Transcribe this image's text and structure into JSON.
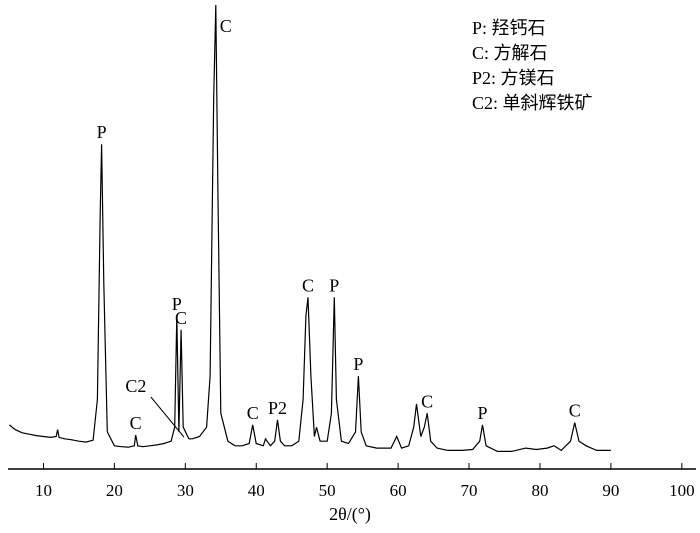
{
  "chart_data": {
    "type": "line",
    "x_label": "2θ/(°)",
    "legend": [
      "P: 羟钙石",
      "C: 方解石",
      "P2: 方镁石",
      "C2: 单斜辉铁矿"
    ],
    "x": [
      5.2,
      6,
      7,
      8,
      9,
      10,
      11,
      11.8,
      12,
      12.2,
      13,
      14,
      15,
      16,
      17,
      17.6,
      18,
      18.2,
      18.5,
      19,
      20,
      21,
      22,
      22.8,
      23,
      23.3,
      24,
      25,
      26,
      27,
      28,
      28.5,
      28.8,
      29.1,
      29.4,
      29.7,
      30.5,
      31,
      32,
      33,
      33.5,
      34,
      34.3,
      34.6,
      35,
      36,
      37,
      38,
      39,
      39.5,
      40,
      41,
      41.3,
      42,
      42.6,
      43,
      43.4,
      44,
      45,
      46,
      46.6,
      47,
      47.3,
      47.7,
      48.2,
      48.5,
      49,
      50,
      50.6,
      51,
      51.3,
      52,
      53,
      54,
      54.4,
      54.8,
      55.5,
      57,
      58,
      59,
      59.8,
      60.5,
      61.5,
      62.2,
      62.6,
      63.2,
      63.7,
      64.1,
      64.6,
      65.5,
      67,
      69,
      70.5,
      71.5,
      71.9,
      72.4,
      74,
      76,
      78,
      79.5,
      81,
      82,
      83,
      84.3,
      84.9,
      85.5,
      86.5,
      88,
      90
    ],
    "series": [
      {
        "color": "#000000",
        "values": [
          9.5,
          8.5,
          7.8,
          7.5,
          7.2,
          7,
          6.8,
          7,
          8.5,
          6.8,
          6.5,
          6.3,
          6,
          5.8,
          6.2,
          15,
          55,
          70,
          40,
          8,
          5,
          4.8,
          4.7,
          5,
          7.3,
          5,
          4.8,
          5,
          5.2,
          5.5,
          6,
          9,
          33,
          8,
          30,
          9,
          6.5,
          6.5,
          7,
          9,
          20,
          80,
          100,
          60,
          12,
          6,
          5,
          5,
          5.5,
          9.5,
          5.5,
          5,
          6.5,
          5,
          6,
          10.6,
          6,
          5,
          5,
          6,
          15,
          33,
          37,
          20,
          7,
          9,
          6,
          6,
          12,
          37,
          15,
          6,
          5.5,
          8,
          20,
          8,
          5,
          4.5,
          4.5,
          4.5,
          7,
          4.5,
          5,
          9,
          14,
          7,
          9,
          12,
          6,
          4.5,
          4,
          4,
          4.2,
          6,
          9.5,
          5,
          3.8,
          3.8,
          4.5,
          4.2,
          4.5,
          5,
          4,
          6,
          10,
          6,
          5,
          4,
          4
        ]
      }
    ],
    "peak_labels": [
      {
        "text": "P",
        "x": 18.2
      },
      {
        "text": "C",
        "x": 23
      },
      {
        "text": "C2",
        "x": 29.8,
        "leader": true
      },
      {
        "text": "P",
        "x": 28.8
      },
      {
        "text": "C",
        "x": 29.4
      },
      {
        "text": "C",
        "x": 34.3
      },
      {
        "text": "C",
        "x": 39.5
      },
      {
        "text": "P2",
        "x": 43
      },
      {
        "text": "C",
        "x": 47.3
      },
      {
        "text": "P",
        "x": 51
      },
      {
        "text": "P",
        "x": 54.4
      },
      {
        "text": "C",
        "x": 64.1
      },
      {
        "text": "P",
        "x": 71.9
      },
      {
        "text": "C",
        "x": 84.9
      }
    ],
    "xlim": [
      5,
      102
    ],
    "ylim": [
      0,
      100
    ],
    "xticks": [
      10,
      20,
      30,
      40,
      50,
      60,
      70,
      80,
      90,
      100
    ]
  }
}
